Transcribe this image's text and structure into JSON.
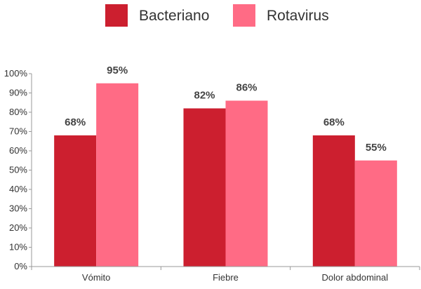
{
  "chart_data": {
    "type": "bar",
    "categories": [
      "Vómito",
      "Fiebre",
      "Dolor abdominal"
    ],
    "series": [
      {
        "name": "Bacteriano",
        "values": [
          68,
          82,
          68
        ],
        "labels": [
          "68%",
          "82%",
          "68%"
        ],
        "color": "#cc1f2f"
      },
      {
        "name": "Rotavirus",
        "values": [
          95,
          86,
          55
        ],
        "labels": [
          "95%",
          "86%",
          "55%"
        ],
        "color": "#ff6b85"
      }
    ],
    "ylim": [
      0,
      100
    ],
    "yticks": [
      0,
      10,
      20,
      30,
      40,
      50,
      60,
      70,
      80,
      90,
      100
    ],
    "ytick_labels": [
      "0%",
      "10%",
      "20%",
      "30%",
      "40%",
      "50%",
      "60%",
      "70%",
      "80%",
      "90%",
      "100%"
    ],
    "legend_position": "top-center",
    "grid": false
  }
}
